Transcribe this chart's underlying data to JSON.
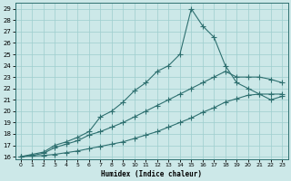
{
  "xlabel": "Humidex (Indice chaleur)",
  "xlim": [
    -0.5,
    23.5
  ],
  "ylim": [
    15.8,
    29.5
  ],
  "xticks": [
    0,
    1,
    2,
    3,
    4,
    5,
    6,
    7,
    8,
    9,
    10,
    11,
    12,
    13,
    14,
    15,
    16,
    17,
    18,
    19,
    20,
    21,
    22,
    23
  ],
  "yticks": [
    16,
    17,
    18,
    19,
    20,
    21,
    22,
    23,
    24,
    25,
    26,
    27,
    28,
    29
  ],
  "bg_color": "#cce8e8",
  "line_color": "#2e7070",
  "grid_color": "#9ecece",
  "series_peak_x": [
    0,
    1,
    2,
    3,
    4,
    5,
    6,
    7,
    8,
    9,
    10,
    11,
    12,
    13,
    14,
    15,
    16,
    17,
    18,
    19,
    20,
    21,
    22,
    23
  ],
  "series_peak_y": [
    16,
    16.2,
    16.4,
    17,
    17.3,
    17.7,
    18.2,
    19.5,
    20,
    20.8,
    21.8,
    22.5,
    23.5,
    24,
    25,
    29,
    27.5,
    26.5,
    24,
    22.5,
    22,
    21.5,
    21,
    21.3
  ],
  "series_mid_x": [
    0,
    1,
    2,
    3,
    4,
    5,
    6,
    7,
    8,
    9,
    10,
    11,
    12,
    13,
    14,
    15,
    16,
    17,
    18,
    19,
    20,
    21,
    22,
    23
  ],
  "series_mid_y": [
    16,
    16.1,
    16.3,
    16.8,
    17.1,
    17.4,
    17.9,
    18.2,
    18.6,
    19,
    19.5,
    20,
    20.5,
    21,
    21.5,
    22,
    22.5,
    23,
    23.5,
    23,
    23,
    23,
    22.8,
    22.5
  ],
  "series_low_x": [
    0,
    1,
    2,
    3,
    4,
    5,
    6,
    7,
    8,
    9,
    10,
    11,
    12,
    13,
    14,
    15,
    16,
    17,
    18,
    19,
    20,
    21,
    22,
    23
  ],
  "series_low_y": [
    16,
    16.05,
    16.1,
    16.2,
    16.35,
    16.5,
    16.7,
    16.9,
    17.1,
    17.3,
    17.6,
    17.9,
    18.2,
    18.6,
    19,
    19.4,
    19.9,
    20.3,
    20.8,
    21.1,
    21.4,
    21.5,
    21.5,
    21.5
  ]
}
